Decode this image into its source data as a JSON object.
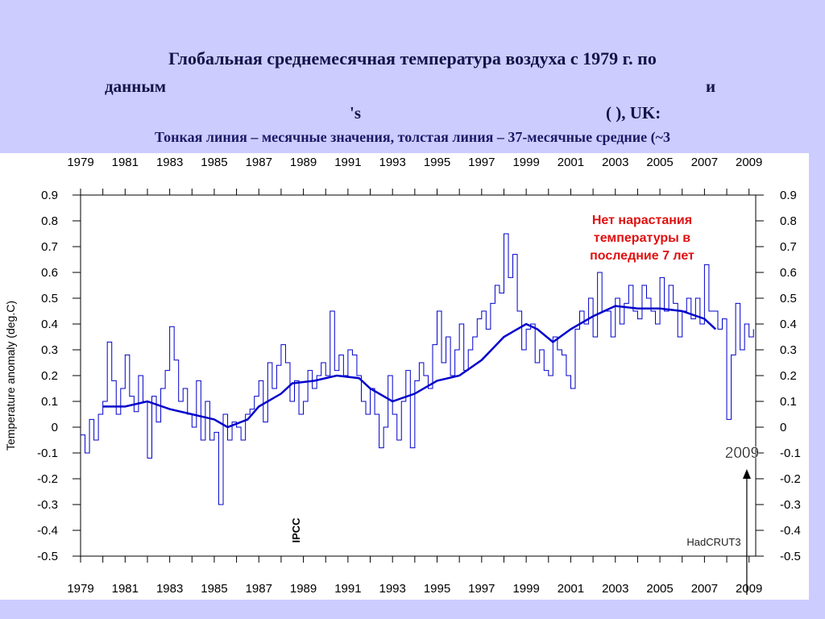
{
  "slide": {
    "title_line1": "Глобальная среднемесячная температура воздуха с 1979 г. по",
    "title_line2a": "данным",
    "title_line2b": "и",
    "title_line3a": "'s",
    "title_line3b": "(        ), UK:",
    "subtitle": "Тонкая линия – месячные значения, толстая линия – 37-месячные средние (~3"
  },
  "chart_data": {
    "type": "line",
    "xlim": [
      1979,
      2009.3
    ],
    "ylim": [
      -0.5,
      0.9
    ],
    "x_ticks": [
      "1979",
      "1981",
      "1983",
      "1985",
      "1987",
      "1989",
      "1991",
      "1993",
      "1995",
      "1997",
      "1999",
      "2001",
      "2003",
      "2005",
      "2007",
      "2009"
    ],
    "y_ticks": [
      "0.9",
      "0.8",
      "0.7",
      "0.6",
      "0.5",
      "0.4",
      "0.3",
      "0.2",
      "0.1",
      "0",
      "-0.1",
      "-0.2",
      "-0.3",
      "-0.4",
      "-0.5"
    ],
    "ylabel": "Temperature anomaly (deg.C)",
    "source_label": "HadCRUT3",
    "ipcc_label": "IPCC",
    "annotation": "Нет нарастания температуры в последние 7 лет",
    "annotation_lines": [
      "Нет нарастания",
      "температуры в",
      "последние 7 лет"
    ],
    "annotation_color": "#e01010",
    "marker_label": "2009",
    "marker_x": 2008.9,
    "series_color": "#0000cc",
    "series": [
      {
        "kind": "monthly",
        "x": [
          1979.0,
          1979.2,
          1979.4,
          1979.6,
          1979.8,
          1980.0,
          1980.2,
          1980.4,
          1980.6,
          1980.8,
          1981.0,
          1981.2,
          1981.4,
          1981.6,
          1981.8,
          1982.0,
          1982.2,
          1982.4,
          1982.6,
          1982.8,
          1983.0,
          1983.2,
          1983.4,
          1983.6,
          1983.8,
          1984.0,
          1984.2,
          1984.4,
          1984.6,
          1984.8,
          1985.0,
          1985.2,
          1985.4,
          1985.6,
          1985.8,
          1986.0,
          1986.2,
          1986.4,
          1986.6,
          1986.8,
          1987.0,
          1987.2,
          1987.4,
          1987.6,
          1987.8,
          1988.0,
          1988.2,
          1988.4,
          1988.6,
          1988.8,
          1989.0,
          1989.2,
          1989.4,
          1989.6,
          1989.8,
          1990.0,
          1990.2,
          1990.4,
          1990.6,
          1990.8,
          1991.0,
          1991.2,
          1991.4,
          1991.6,
          1991.8,
          1992.0,
          1992.2,
          1992.4,
          1992.6,
          1992.8,
          1993.0,
          1993.2,
          1993.4,
          1993.6,
          1993.8,
          1994.0,
          1994.2,
          1994.4,
          1994.6,
          1994.8,
          1995.0,
          1995.2,
          1995.4,
          1995.6,
          1995.8,
          1996.0,
          1996.2,
          1996.4,
          1996.6,
          1996.8,
          1997.0,
          1997.2,
          1997.4,
          1997.6,
          1997.8,
          1998.0,
          1998.2,
          1998.4,
          1998.6,
          1998.8,
          1999.0,
          1999.2,
          1999.4,
          1999.6,
          1999.8,
          2000.0,
          2000.2,
          2000.4,
          2000.6,
          2000.8,
          2001.0,
          2001.2,
          2001.4,
          2001.6,
          2001.8,
          2002.0,
          2002.2,
          2002.4,
          2002.6,
          2002.8,
          2003.0,
          2003.2,
          2003.4,
          2003.6,
          2003.8,
          2004.0,
          2004.2,
          2004.4,
          2004.6,
          2004.8,
          2005.0,
          2005.2,
          2005.4,
          2005.6,
          2005.8,
          2006.0,
          2006.2,
          2006.4,
          2006.6,
          2006.8,
          2007.0,
          2007.2,
          2007.4,
          2007.6,
          2007.8,
          2008.0,
          2008.2,
          2008.4,
          2008.6,
          2008.8,
          2009.0,
          2009.2
        ],
        "y": [
          -0.03,
          -0.1,
          0.03,
          -0.05,
          0.05,
          0.1,
          0.33,
          0.18,
          0.05,
          0.15,
          0.28,
          0.12,
          0.06,
          0.2,
          0.1,
          -0.12,
          0.12,
          0.02,
          0.15,
          0.22,
          0.39,
          0.26,
          0.1,
          0.15,
          0.05,
          0.0,
          0.18,
          -0.05,
          0.1,
          -0.05,
          -0.02,
          -0.3,
          0.05,
          -0.05,
          0.02,
          0.0,
          -0.05,
          0.05,
          0.07,
          0.12,
          0.18,
          0.02,
          0.25,
          0.15,
          0.24,
          0.32,
          0.25,
          0.1,
          0.18,
          0.05,
          0.1,
          0.22,
          0.15,
          0.2,
          0.25,
          0.2,
          0.45,
          0.22,
          0.28,
          0.2,
          0.3,
          0.28,
          0.2,
          0.1,
          0.05,
          0.15,
          0.05,
          -0.08,
          0.0,
          0.2,
          0.05,
          -0.05,
          0.1,
          0.22,
          -0.08,
          0.18,
          0.25,
          0.2,
          0.15,
          0.32,
          0.45,
          0.25,
          0.35,
          0.2,
          0.3,
          0.4,
          0.22,
          0.3,
          0.35,
          0.42,
          0.45,
          0.38,
          0.48,
          0.55,
          0.52,
          0.75,
          0.58,
          0.67,
          0.45,
          0.3,
          0.38,
          0.4,
          0.25,
          0.3,
          0.22,
          0.2,
          0.35,
          0.3,
          0.28,
          0.2,
          0.15,
          0.38,
          0.45,
          0.4,
          0.5,
          0.35,
          0.6,
          0.45,
          0.45,
          0.35,
          0.5,
          0.4,
          0.48,
          0.55,
          0.45,
          0.42,
          0.55,
          0.5,
          0.45,
          0.4,
          0.58,
          0.45,
          0.55,
          0.48,
          0.35,
          0.45,
          0.5,
          0.42,
          0.5,
          0.4,
          0.63,
          0.45,
          0.45,
          0.38,
          0.42,
          0.03,
          0.28,
          0.48,
          0.3,
          0.4,
          0.35,
          0.38
        ]
      },
      {
        "kind": "37-month mean",
        "x": [
          1980.0,
          1981.0,
          1982.0,
          1983.0,
          1984.0,
          1985.0,
          1985.6,
          1986.5,
          1987.0,
          1988.0,
          1988.5,
          1989.5,
          1990.5,
          1991.5,
          1992.0,
          1993.0,
          1994.0,
          1995.0,
          1996.0,
          1997.0,
          1998.0,
          1999.0,
          1999.5,
          2000.2,
          2001.0,
          2002.0,
          2003.0,
          2004.0,
          2005.0,
          2006.0,
          2007.0,
          2007.5
        ],
        "y": [
          0.08,
          0.08,
          0.1,
          0.07,
          0.05,
          0.03,
          0.0,
          0.03,
          0.08,
          0.13,
          0.17,
          0.18,
          0.2,
          0.19,
          0.15,
          0.1,
          0.13,
          0.18,
          0.2,
          0.26,
          0.35,
          0.4,
          0.38,
          0.33,
          0.38,
          0.43,
          0.47,
          0.46,
          0.46,
          0.45,
          0.42,
          0.38
        ]
      }
    ]
  }
}
